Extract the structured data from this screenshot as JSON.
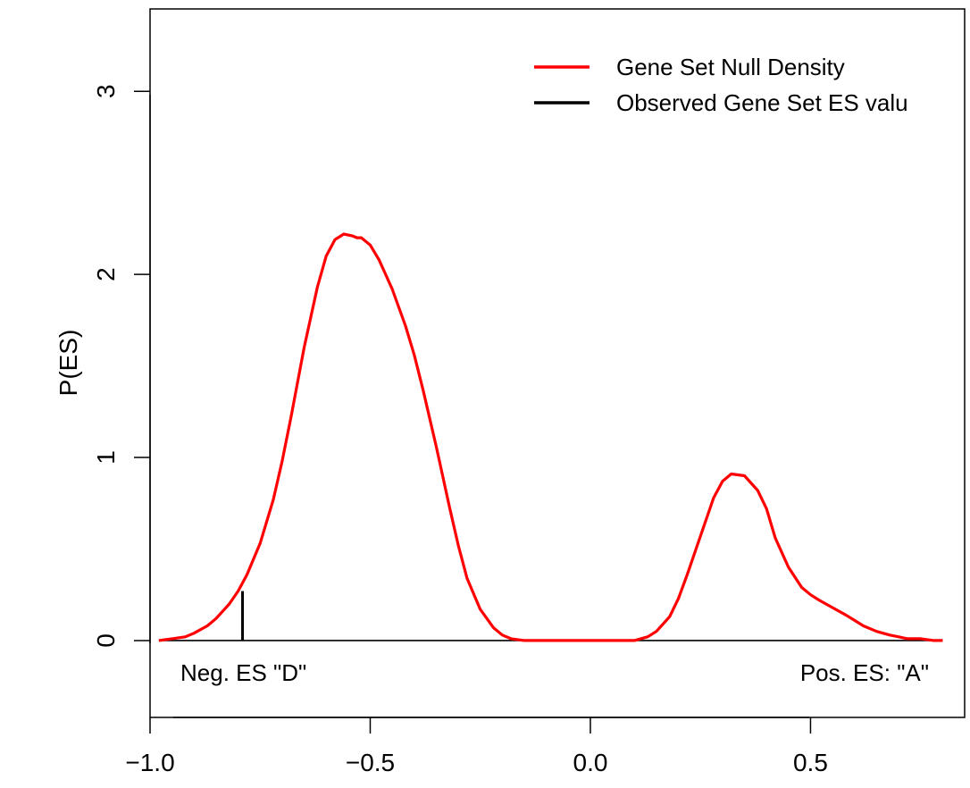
{
  "chart_data": {
    "type": "line",
    "xlabel": "",
    "ylabel": "P(ES)",
    "xlim": [
      -1.0,
      0.85
    ],
    "ylim": [
      -0.42,
      3.45
    ],
    "x_ticks": [
      -1.0,
      -0.5,
      0.0,
      0.5
    ],
    "x_tick_labels": [
      "−1.0",
      "−0.5",
      "0.0",
      "0.5"
    ],
    "y_ticks": [
      0,
      1,
      2,
      3
    ],
    "y_tick_labels": [
      "0",
      "1",
      "2",
      "3"
    ],
    "legend": {
      "position": "top-right",
      "entries": [
        {
          "label": "Gene Set Null Density",
          "color": "#ff0000"
        },
        {
          "label": "Observed Gene Set ES valu",
          "color": "#000000"
        }
      ]
    },
    "series": [
      {
        "name": "Gene Set Null Density",
        "color": "#ff0000",
        "x": [
          -0.98,
          -0.95,
          -0.92,
          -0.9,
          -0.87,
          -0.85,
          -0.82,
          -0.8,
          -0.78,
          -0.75,
          -0.72,
          -0.7,
          -0.68,
          -0.65,
          -0.62,
          -0.6,
          -0.58,
          -0.56,
          -0.54,
          -0.53,
          -0.52,
          -0.5,
          -0.48,
          -0.45,
          -0.42,
          -0.4,
          -0.38,
          -0.35,
          -0.32,
          -0.3,
          -0.28,
          -0.25,
          -0.22,
          -0.2,
          -0.18,
          -0.15,
          -0.12,
          -0.1,
          -0.05,
          0.0,
          0.05,
          0.1,
          0.13,
          0.15,
          0.18,
          0.2,
          0.22,
          0.25,
          0.28,
          0.3,
          0.32,
          0.35,
          0.38,
          0.4,
          0.42,
          0.45,
          0.48,
          0.5,
          0.52,
          0.55,
          0.58,
          0.6,
          0.62,
          0.65,
          0.68,
          0.7,
          0.72,
          0.75,
          0.78,
          0.8
        ],
        "y": [
          0.0,
          0.01,
          0.02,
          0.04,
          0.08,
          0.12,
          0.2,
          0.27,
          0.36,
          0.53,
          0.77,
          0.98,
          1.22,
          1.6,
          1.93,
          2.1,
          2.19,
          2.22,
          2.21,
          2.2,
          2.2,
          2.16,
          2.08,
          1.92,
          1.72,
          1.56,
          1.37,
          1.06,
          0.73,
          0.52,
          0.34,
          0.17,
          0.07,
          0.03,
          0.01,
          0.0,
          0.0,
          0.0,
          0.0,
          0.0,
          0.0,
          0.0,
          0.02,
          0.05,
          0.13,
          0.23,
          0.36,
          0.57,
          0.78,
          0.87,
          0.91,
          0.9,
          0.82,
          0.72,
          0.56,
          0.4,
          0.29,
          0.25,
          0.22,
          0.18,
          0.14,
          0.11,
          0.08,
          0.05,
          0.03,
          0.02,
          0.01,
          0.01,
          0.0,
          0.0
        ]
      }
    ],
    "observed_es": {
      "x": -0.79,
      "y0": 0,
      "y1": 0.27,
      "color": "#000000"
    },
    "baseline_y": 0,
    "annotations": [
      {
        "text": "Neg. ES \"D\"",
        "position": "bottom-left"
      },
      {
        "text": "Pos. ES: \"A\"",
        "position": "bottom-right"
      }
    ]
  }
}
